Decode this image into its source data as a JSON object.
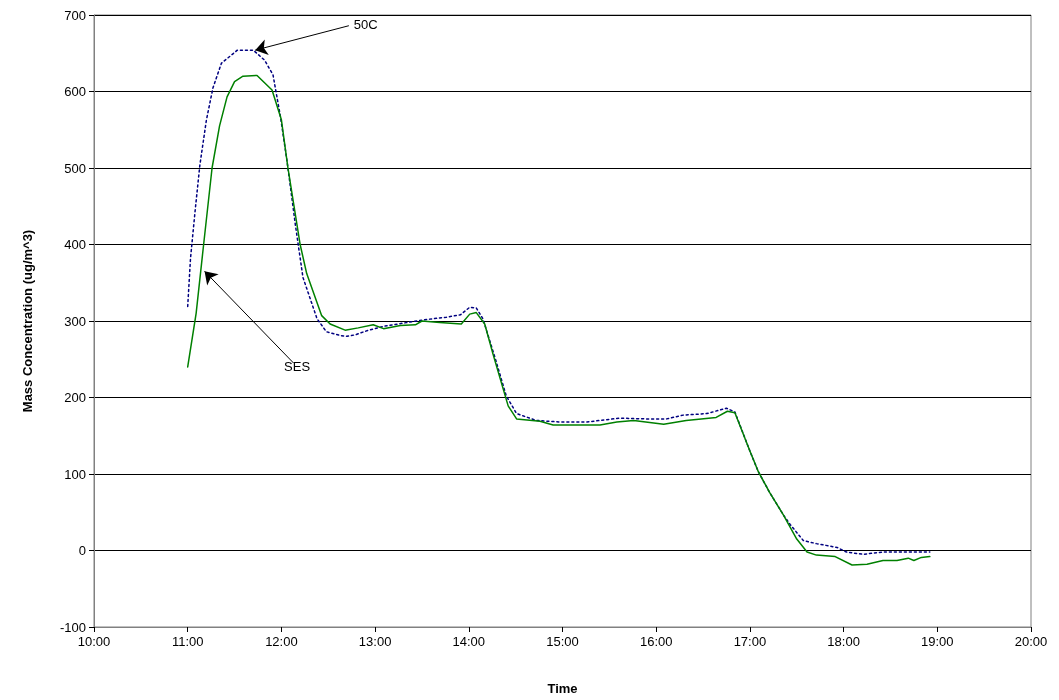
{
  "chart_data": {
    "type": "line",
    "xlabel": "Time",
    "ylabel": "Mass Concentration (ug/m^3)",
    "xlim": [
      10,
      20
    ],
    "xticks": [
      {
        "value": 10,
        "label": "10:00"
      },
      {
        "value": 11,
        "label": "11:00"
      },
      {
        "value": 12,
        "label": "12:00"
      },
      {
        "value": 13,
        "label": "13:00"
      },
      {
        "value": 14,
        "label": "14:00"
      },
      {
        "value": 15,
        "label": "15:00"
      },
      {
        "value": 16,
        "label": "16:00"
      },
      {
        "value": 17,
        "label": "17:00"
      },
      {
        "value": 18,
        "label": "18:00"
      },
      {
        "value": 19,
        "label": "19:00"
      },
      {
        "value": 20,
        "label": "20:00"
      }
    ],
    "ylim": [
      -100,
      700
    ],
    "yticks": [
      -100,
      0,
      100,
      200,
      300,
      400,
      500,
      600,
      700
    ],
    "grid": "y",
    "marker": "none",
    "series": [
      {
        "color": "#000080",
        "line_style": "dotted",
        "x": [
          11.0,
          11.03,
          11.08,
          11.13,
          11.2,
          11.27,
          11.36,
          11.53,
          11.7,
          11.82,
          11.91,
          11.99,
          12.06,
          12.15,
          12.23,
          12.38,
          12.48,
          12.63,
          12.7,
          12.79,
          12.93,
          13.09,
          13.34,
          13.55,
          13.76,
          13.91,
          14.01,
          14.08,
          14.15,
          14.28,
          14.4,
          14.51,
          14.72,
          14.97,
          15.26,
          15.61,
          15.9,
          16.11,
          16.29,
          16.54,
          16.75,
          16.84,
          17.0,
          17.09,
          17.21,
          17.36,
          17.43,
          17.57,
          17.71,
          17.93,
          18.03,
          18.21,
          18.42,
          18.67,
          18.92
        ],
        "values": [
          319,
          382,
          445,
          504,
          563,
          605,
          637,
          654,
          654,
          641,
          622,
          567,
          509,
          425,
          357,
          303,
          286,
          281,
          280,
          282,
          288,
          293,
          298,
          302,
          305,
          308,
          318,
          317,
          303,
          252,
          202,
          179,
          170,
          168,
          168,
          173,
          172,
          172,
          177,
          179,
          186,
          181,
          130,
          103,
          76,
          46,
          34,
          13,
          9,
          4,
          -2,
          -5,
          -2,
          -2,
          -2
        ]
      },
      {
        "color": "#008000",
        "line_style": "solid",
        "x": [
          11.0,
          11.09,
          11.17,
          11.26,
          11.34,
          11.42,
          11.5,
          11.59,
          11.74,
          11.9,
          12.0,
          12.07,
          12.2,
          12.27,
          12.43,
          12.52,
          12.68,
          12.82,
          12.98,
          13.09,
          13.27,
          13.43,
          13.5,
          13.69,
          13.92,
          14.01,
          14.08,
          14.17,
          14.26,
          14.37,
          14.42,
          14.51,
          14.76,
          14.9,
          15.4,
          15.58,
          15.76,
          16.08,
          16.32,
          16.64,
          16.76,
          16.84,
          17.0,
          17.09,
          17.21,
          17.36,
          17.5,
          17.61,
          17.71,
          17.91,
          18.09,
          18.25,
          18.42,
          18.57,
          18.69,
          18.75,
          18.83,
          18.92
        ],
        "values": [
          240,
          310,
          400,
          500,
          555,
          593,
          613,
          620,
          621,
          602,
          563,
          500,
          400,
          362,
          307,
          296,
          288,
          291,
          295,
          290,
          294,
          295,
          300,
          298,
          296,
          309,
          311,
          296,
          256,
          210,
          189,
          172,
          169,
          164,
          164,
          168,
          170,
          165,
          170,
          174,
          182,
          180,
          130,
          103,
          76,
          46,
          15,
          -2,
          -6,
          -8,
          -19,
          -18,
          -13,
          -13,
          -10,
          -13,
          -9,
          -8
        ]
      }
    ],
    "annotations": [
      {
        "text": "50C",
        "x": 11.72,
        "y": 654
      },
      {
        "text": "SES",
        "x": 11.18,
        "y": 365
      }
    ]
  }
}
